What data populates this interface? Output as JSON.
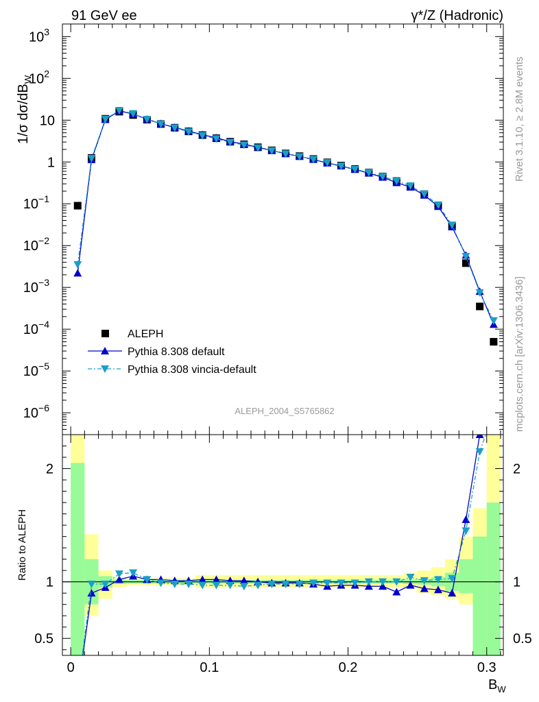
{
  "header": {
    "left": "91 GeV ee",
    "right": "γ*/Z (Hadronic)"
  },
  "side_notes": {
    "rivet": "Rivet 3.1.10, ≥ 2.8M events",
    "mcplots": "mcplots.cern.ch [arXiv:1306.3436]"
  },
  "analysis_id": "ALEPH_2004_S5765862",
  "colors": {
    "aleph": "#000000",
    "pythia": "#0000cc",
    "vincia": "#1a9fc9",
    "band_inner": "#98fb98",
    "band_outer": "#ffff99"
  },
  "chart_data": [
    {
      "type": "scatter",
      "panel": "main",
      "ylabel": "1/σ  dσ/dB_W",
      "yscale": "log",
      "ylim": [
        3e-07,
        2000
      ],
      "xlim": [
        -0.006,
        0.312
      ],
      "yticks": [
        {
          "value": 1e-06,
          "base": "10",
          "exp": "−6"
        },
        {
          "value": 1e-05,
          "base": "10",
          "exp": "−5"
        },
        {
          "value": 0.0001,
          "base": "10",
          "exp": "−4"
        },
        {
          "value": 0.001,
          "base": "10",
          "exp": "−3"
        },
        {
          "value": 0.01,
          "base": "10",
          "exp": "−2"
        },
        {
          "value": 0.1,
          "base": "10",
          "exp": "−1"
        },
        {
          "value": 1,
          "base": "1",
          "exp": ""
        },
        {
          "value": 10,
          "base": "10",
          "exp": ""
        },
        {
          "value": 100,
          "base": "10",
          "exp": "2"
        },
        {
          "value": 1000,
          "base": "10",
          "exp": "3"
        }
      ],
      "legend": [
        "ALEPH",
        "Pythia 8.308 default",
        "Pythia 8.308 vincia-default"
      ],
      "x": [
        0.005,
        0.015,
        0.025,
        0.035,
        0.045,
        0.055,
        0.065,
        0.075,
        0.085,
        0.095,
        0.105,
        0.115,
        0.125,
        0.135,
        0.145,
        0.155,
        0.165,
        0.175,
        0.185,
        0.195,
        0.205,
        0.215,
        0.225,
        0.235,
        0.245,
        0.255,
        0.265,
        0.275,
        0.285,
        0.295,
        0.305
      ],
      "series": [
        {
          "name": "ALEPH",
          "marker": "square",
          "values": [
            0.09,
            1.25,
            10.8,
            16.0,
            13.3,
            10.3,
            8.1,
            6.6,
            5.4,
            4.4,
            3.7,
            3.05,
            2.65,
            2.25,
            1.9,
            1.6,
            1.38,
            1.18,
            0.98,
            0.82,
            0.68,
            0.56,
            0.45,
            0.35,
            0.26,
            0.17,
            0.092,
            0.03,
            0.0038,
            0.00035,
            5e-05
          ]
        },
        {
          "name": "Pythia 8.308 default",
          "marker": "triangle-up",
          "values": [
            0.0022,
            1.13,
            10.3,
            16.6,
            14.1,
            10.5,
            8.25,
            6.7,
            5.5,
            4.5,
            3.78,
            3.08,
            2.67,
            2.25,
            1.88,
            1.59,
            1.36,
            1.15,
            0.94,
            0.8,
            0.66,
            0.54,
            0.43,
            0.32,
            0.25,
            0.16,
            0.086,
            0.028,
            0.0059,
            0.0008,
            0.00013
          ]
        },
        {
          "name": "Pythia 8.308 vincia-default",
          "marker": "triangle-down",
          "values": [
            0.0035,
            1.22,
            10.6,
            17.2,
            14.4,
            10.5,
            8.1,
            6.55,
            5.3,
            4.3,
            3.6,
            2.95,
            2.56,
            2.18,
            1.87,
            1.57,
            1.35,
            1.16,
            0.97,
            0.8,
            0.67,
            0.56,
            0.45,
            0.35,
            0.27,
            0.172,
            0.094,
            0.031,
            0.0055,
            0.00075,
            0.00016
          ]
        }
      ]
    },
    {
      "type": "line",
      "panel": "ratio",
      "ylabel": "Ratio to ALEPH",
      "xlabel": "B_W",
      "ylim": [
        0.35,
        2.3
      ],
      "xlim": [
        -0.006,
        0.312
      ],
      "yticks": [
        0.5,
        1,
        2
      ],
      "xticks": [
        {
          "value": 0,
          "label": "0"
        },
        {
          "value": 0.1,
          "label": "0.1"
        },
        {
          "value": 0.2,
          "label": "0.2"
        },
        {
          "value": 0.3,
          "label": "0.3"
        }
      ],
      "x": [
        0.005,
        0.015,
        0.025,
        0.035,
        0.045,
        0.055,
        0.065,
        0.075,
        0.085,
        0.095,
        0.105,
        0.115,
        0.125,
        0.135,
        0.145,
        0.155,
        0.165,
        0.175,
        0.185,
        0.195,
        0.205,
        0.215,
        0.225,
        0.235,
        0.245,
        0.255,
        0.265,
        0.275,
        0.285,
        0.295,
        0.305
      ],
      "bands": {
        "bin_edges": [
          0,
          0.01,
          0.02,
          0.03,
          0.04,
          0.05,
          0.06,
          0.07,
          0.08,
          0.09,
          0.1,
          0.11,
          0.12,
          0.13,
          0.14,
          0.15,
          0.16,
          0.17,
          0.18,
          0.19,
          0.2,
          0.21,
          0.22,
          0.23,
          0.24,
          0.25,
          0.26,
          0.27,
          0.28,
          0.29,
          0.3,
          0.31
        ],
        "stat_lo": [
          0.1,
          0.8,
          0.95,
          0.98,
          0.985,
          0.985,
          0.985,
          0.985,
          0.985,
          0.985,
          0.985,
          0.985,
          0.985,
          0.985,
          0.985,
          0.985,
          0.985,
          0.985,
          0.985,
          0.985,
          0.985,
          0.985,
          0.985,
          0.985,
          0.98,
          0.975,
          0.96,
          0.92,
          0.9,
          0.25,
          0.25
        ],
        "stat_hi": [
          2.05,
          1.2,
          1.05,
          1.02,
          1.015,
          1.015,
          1.015,
          1.015,
          1.015,
          1.015,
          1.015,
          1.015,
          1.015,
          1.015,
          1.015,
          1.015,
          1.015,
          1.015,
          1.015,
          1.015,
          1.015,
          1.015,
          1.015,
          1.015,
          1.02,
          1.025,
          1.04,
          1.08,
          1.2,
          1.4,
          1.7
        ],
        "total_lo": [
          0.05,
          0.7,
          0.85,
          0.95,
          0.97,
          0.97,
          0.97,
          0.97,
          0.97,
          0.95,
          0.95,
          0.95,
          0.95,
          0.95,
          0.95,
          0.95,
          0.95,
          0.95,
          0.95,
          0.95,
          0.95,
          0.95,
          0.95,
          0.95,
          0.94,
          0.9,
          0.88,
          0.85,
          0.8,
          0.3,
          0.3
        ],
        "total_hi": [
          2.4,
          1.42,
          1.1,
          1.04,
          1.03,
          1.03,
          1.03,
          1.03,
          1.03,
          1.06,
          1.06,
          1.06,
          1.06,
          1.06,
          1.06,
          1.06,
          1.06,
          1.06,
          1.06,
          1.06,
          1.06,
          1.06,
          1.06,
          1.06,
          1.08,
          1.1,
          1.13,
          1.2,
          1.4,
          1.65,
          2.3
        ]
      },
      "series": [
        {
          "name": "Pythia 8.308 default",
          "values": [
            0.02,
            0.9,
            0.95,
            1.02,
            1.05,
            1.02,
            1.02,
            1.01,
            1.01,
            1.02,
            1.02,
            1.01,
            1.01,
            1.0,
            0.99,
            0.99,
            0.99,
            0.98,
            0.96,
            0.97,
            0.97,
            0.96,
            0.96,
            0.91,
            0.97,
            0.94,
            0.93,
            0.9,
            1.55,
            2.3,
            2.6
          ]
        },
        {
          "name": "Pythia 8.308 vincia-default",
          "values": [
            0.04,
            0.98,
            0.98,
            1.07,
            1.08,
            1.02,
            0.99,
            0.98,
            0.98,
            0.97,
            0.97,
            0.97,
            0.96,
            0.97,
            0.98,
            0.98,
            0.98,
            0.99,
            0.99,
            0.99,
            0.99,
            1.0,
            1.0,
            1.0,
            1.04,
            1.01,
            1.02,
            1.03,
            1.45,
            2.15,
            2.5
          ]
        }
      ]
    }
  ]
}
